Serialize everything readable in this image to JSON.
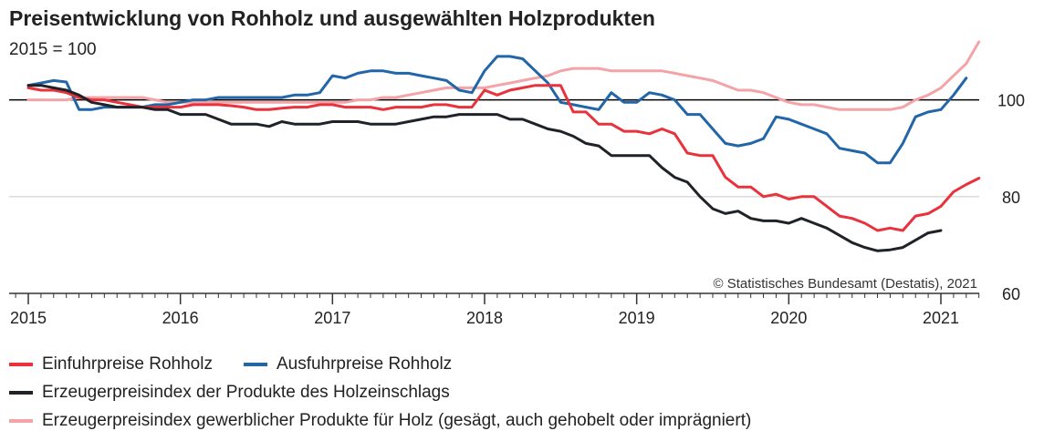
{
  "header": {
    "title": "Preisentwicklung von Rohholz und ausgewählten Holzprodukten",
    "subtitle": "2015 = 100"
  },
  "source": "© Statistisches Bundesamt (Destatis), 2021",
  "colors": {
    "einfuhr": "#e8323c",
    "ausfuhr": "#2266a8",
    "erzeuger_holzeinschlag": "#1f2328",
    "erzeuger_holz": "#f4a3a6",
    "reference_line": "#000000",
    "grid": "#c8c8c8",
    "axis": "#333333"
  },
  "chart_data": {
    "type": "line",
    "x_unit": "Monat (Jan 2015 = 0)",
    "xlabels": [
      "2015",
      "2016",
      "2017",
      "2018",
      "2019",
      "2020",
      "2021"
    ],
    "ylim": [
      60,
      115
    ],
    "yticks": [
      60,
      80,
      100
    ],
    "reference_line": 100,
    "grid": "horizontal",
    "legend_position": "bottom",
    "series": [
      {
        "key": "einfuhr",
        "name": "Einfuhrpreise Rohholz",
        "values": [
          102.5,
          102,
          102,
          101.5,
          100.5,
          100,
          100,
          99.5,
          99,
          98.5,
          98.5,
          98.5,
          98.5,
          99,
          99,
          99,
          98.8,
          98.5,
          98,
          98,
          98.3,
          98.5,
          98.5,
          99,
          99,
          98.5,
          98.5,
          98.5,
          98,
          98.5,
          98.5,
          98.5,
          99,
          99,
          98.5,
          98.5,
          102,
          101,
          102,
          102.5,
          103,
          103,
          103,
          97.5,
          97.5,
          95,
          95,
          93.5,
          93.5,
          93,
          94,
          93,
          89,
          88.5,
          88.5,
          84,
          82,
          82,
          80,
          80.5,
          79.5,
          80,
          80,
          78,
          76,
          75.5,
          74.5,
          73,
          73.5,
          73,
          76,
          76.5,
          78,
          81,
          82.5,
          83.8
        ]
      },
      {
        "key": "ausfuhr",
        "name": "Ausfuhrpreise Rohholz",
        "values": [
          103,
          103.5,
          104,
          103.7,
          98,
          98,
          98.5,
          98.5,
          98.5,
          98.5,
          99,
          99,
          99.5,
          100,
          100,
          100.5,
          100.5,
          100.5,
          100.5,
          100.5,
          100.5,
          101,
          101,
          101.5,
          105,
          104.5,
          105.5,
          106,
          106,
          105.5,
          105.5,
          105,
          104.5,
          104,
          102,
          101.5,
          106,
          109,
          109,
          108.5,
          106,
          103.5,
          99.5,
          99,
          98.5,
          98,
          101.5,
          99.5,
          99.5,
          101.5,
          101,
          100,
          97,
          97,
          94,
          91,
          90.5,
          91,
          92,
          96.5,
          96,
          95,
          94,
          93,
          90,
          89.5,
          89,
          87,
          87,
          91,
          96.5,
          97.5,
          98,
          101,
          104.5
        ]
      },
      {
        "key": "erzeuger_holzeinschlag",
        "name": "Erzeugerpreisindex der Produkte des Holzeinschlags",
        "values": [
          103,
          103,
          102.5,
          102,
          101,
          99.5,
          99,
          98.5,
          98.5,
          98.5,
          98,
          98,
          97,
          97,
          97,
          96,
          95,
          95,
          95,
          94.5,
          95.5,
          95,
          95,
          95,
          95.5,
          95.5,
          95.5,
          95,
          95,
          95,
          95.5,
          96,
          96.5,
          96.5,
          97,
          97,
          97,
          97,
          96,
          96,
          95,
          94,
          93.5,
          92.5,
          91,
          90.5,
          88.5,
          88.5,
          88.5,
          88.5,
          86,
          84,
          83,
          80,
          77.5,
          76.5,
          77,
          75.5,
          75,
          75,
          74.5,
          75.5,
          74.5,
          73.5,
          72,
          70.5,
          69.5,
          68.8,
          69,
          69.5,
          71,
          72.5,
          73
        ]
      },
      {
        "key": "erzeuger_holz",
        "name": "Erzeugerpreisindex gewerblicher Produkte für Holz (gesägt, auch gehobelt oder imprägniert)",
        "values": [
          100,
          100,
          100,
          100,
          100.5,
          100.5,
          100.5,
          100.5,
          100.5,
          100.5,
          100,
          99.5,
          99.5,
          99.5,
          99.5,
          99.5,
          99.5,
          99.5,
          99.5,
          99.5,
          99.5,
          99.5,
          99.5,
          99.5,
          99.5,
          99.5,
          100,
          100,
          100.5,
          100.5,
          101,
          101.5,
          102,
          102.5,
          102.5,
          102.5,
          102.5,
          103,
          103.5,
          104,
          104.5,
          105,
          106,
          106.5,
          106.5,
          106.5,
          106,
          106,
          106,
          106,
          106,
          105.5,
          105,
          104.5,
          104,
          103,
          102,
          102,
          101.5,
          100.5,
          99.5,
          99,
          99,
          98.5,
          98,
          98,
          98,
          98,
          98,
          98.5,
          100,
          101,
          102.5,
          105,
          107.5,
          112
        ]
      }
    ]
  }
}
